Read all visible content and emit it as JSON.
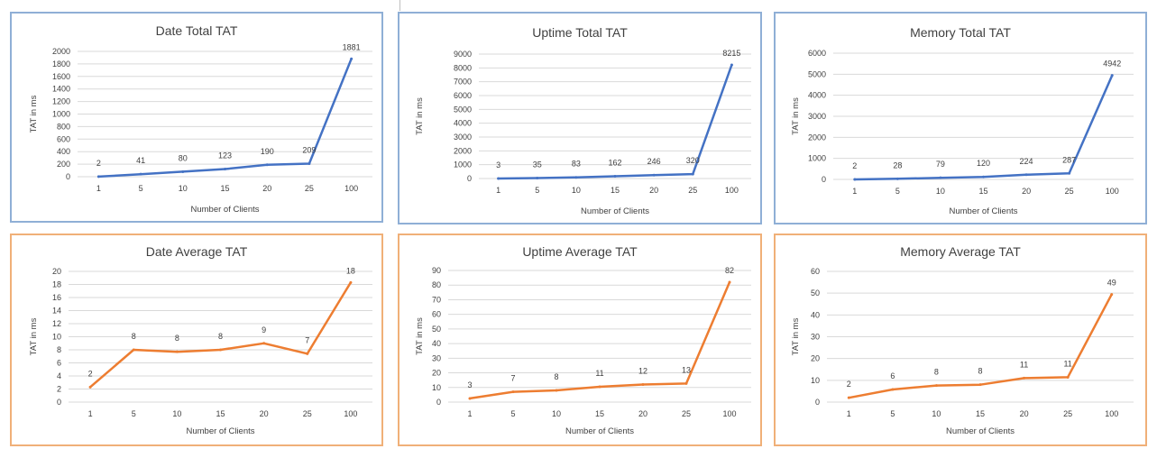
{
  "colors": {
    "blue_line": "#4472c4",
    "orange_line": "#ed7d31",
    "blue_border": "#8fafd6",
    "orange_border": "#f0b078"
  },
  "chart_data": [
    {
      "type": "line",
      "title": "Date Total TAT",
      "xlabel": "Number of Clients",
      "ylabel": "TAT in ms",
      "categories": [
        "1",
        "5",
        "10",
        "15",
        "20",
        "25",
        "100"
      ],
      "values": [
        2,
        41,
        80,
        123,
        190,
        209,
        1881
      ],
      "ylim": [
        0,
        2000
      ],
      "ystep": 200,
      "grid": true,
      "color": "#4472c4"
    },
    {
      "type": "line",
      "title": "Uptime Total TAT",
      "xlabel": "Number of Clients",
      "ylabel": "TAT in ms",
      "categories": [
        "1",
        "5",
        "10",
        "15",
        "20",
        "25",
        "100"
      ],
      "values": [
        3,
        35,
        83,
        162,
        246,
        320,
        8215
      ],
      "ylim": [
        0,
        9000
      ],
      "ystep": 1000,
      "grid": true,
      "color": "#4472c4"
    },
    {
      "type": "line",
      "title": "Memory Total TAT",
      "xlabel": "Number of Clients",
      "ylabel": "TAT in ms",
      "categories": [
        "1",
        "5",
        "10",
        "15",
        "20",
        "25",
        "100"
      ],
      "values": [
        2,
        28,
        79,
        120,
        224,
        287,
        4942
      ],
      "ylim": [
        0,
        6000
      ],
      "ystep": 1000,
      "grid": true,
      "color": "#4472c4"
    },
    {
      "type": "line",
      "title": "Date Average TAT",
      "xlabel": "Number of Clients",
      "ylabel": "TAT in ms",
      "categories": [
        "1",
        "5",
        "10",
        "15",
        "20",
        "25",
        "100"
      ],
      "values": [
        2.3,
        8,
        7.7,
        8,
        9,
        7.4,
        18.3
      ],
      "labels": [
        "2",
        "8",
        "8",
        "8",
        "9",
        "7",
        "18"
      ],
      "ylim": [
        0,
        20
      ],
      "ystep": 2,
      "grid": true,
      "color": "#ed7d31"
    },
    {
      "type": "line",
      "title": "Uptime Average TAT",
      "xlabel": "Number of Clients",
      "ylabel": "TAT in ms",
      "categories": [
        "1",
        "5",
        "10",
        "15",
        "20",
        "25",
        "100"
      ],
      "values": [
        2.5,
        7,
        8,
        10.5,
        12,
        12.7,
        82
      ],
      "labels": [
        "3",
        "7",
        "8",
        "11",
        "12",
        "13",
        "82"
      ],
      "ylim": [
        0,
        90
      ],
      "ystep": 10,
      "grid": true,
      "color": "#ed7d31"
    },
    {
      "type": "line",
      "title": "Memory Average TAT",
      "xlabel": "Number of Clients",
      "ylabel": "TAT in ms",
      "categories": [
        "1",
        "5",
        "10",
        "15",
        "20",
        "25",
        "100"
      ],
      "values": [
        2,
        5.8,
        7.6,
        8,
        11,
        11.4,
        49.4
      ],
      "labels": [
        "2",
        "6",
        "8",
        "8",
        "11",
        "11",
        "49"
      ],
      "ylim": [
        0,
        60
      ],
      "ystep": 10,
      "grid": true,
      "color": "#ed7d31"
    }
  ]
}
